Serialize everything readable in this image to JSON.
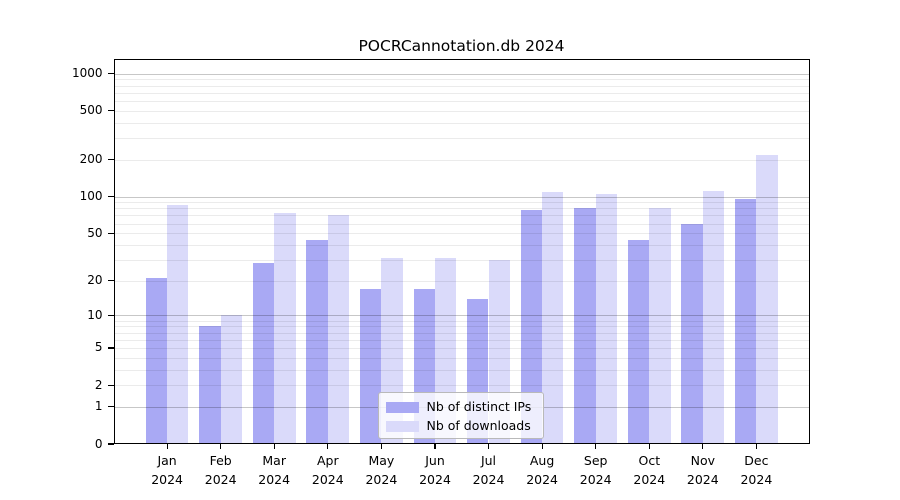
{
  "title": "POCRCannotation.db 2024",
  "legend": {
    "items": [
      {
        "label": "Nb of distinct IPs",
        "color": "#a9a9f4"
      },
      {
        "label": "Nb of downloads",
        "color": "#dadafa"
      }
    ]
  },
  "chart_data": {
    "type": "bar",
    "title": "POCRCannotation.db 2024",
    "categories": [
      "Jan",
      "Feb",
      "Mar",
      "Apr",
      "May",
      "Jun",
      "Jul",
      "Aug",
      "Sep",
      "Oct",
      "Nov",
      "Dec"
    ],
    "x_year_label": "2024",
    "series": [
      {
        "name": "Nb of distinct IPs",
        "color": "#a9a9f4",
        "values": [
          21,
          8,
          28,
          44,
          17,
          17,
          14,
          77,
          81,
          44,
          60,
          96
        ]
      },
      {
        "name": "Nb of downloads",
        "color": "#dadafa",
        "values": [
          85,
          10,
          74,
          71,
          31,
          31,
          30,
          108,
          104,
          80,
          110,
          220
        ]
      }
    ],
    "yscale": "log10(value+1)",
    "yticks": [
      0,
      1,
      2,
      5,
      10,
      20,
      50,
      100,
      200,
      500,
      1000
    ],
    "ylim": [
      0,
      1320
    ],
    "grid": "horizontal; solid lines at 1,10,100,1000; faint minors at 2-9 per decade",
    "legend_position": "inside, lower center"
  }
}
